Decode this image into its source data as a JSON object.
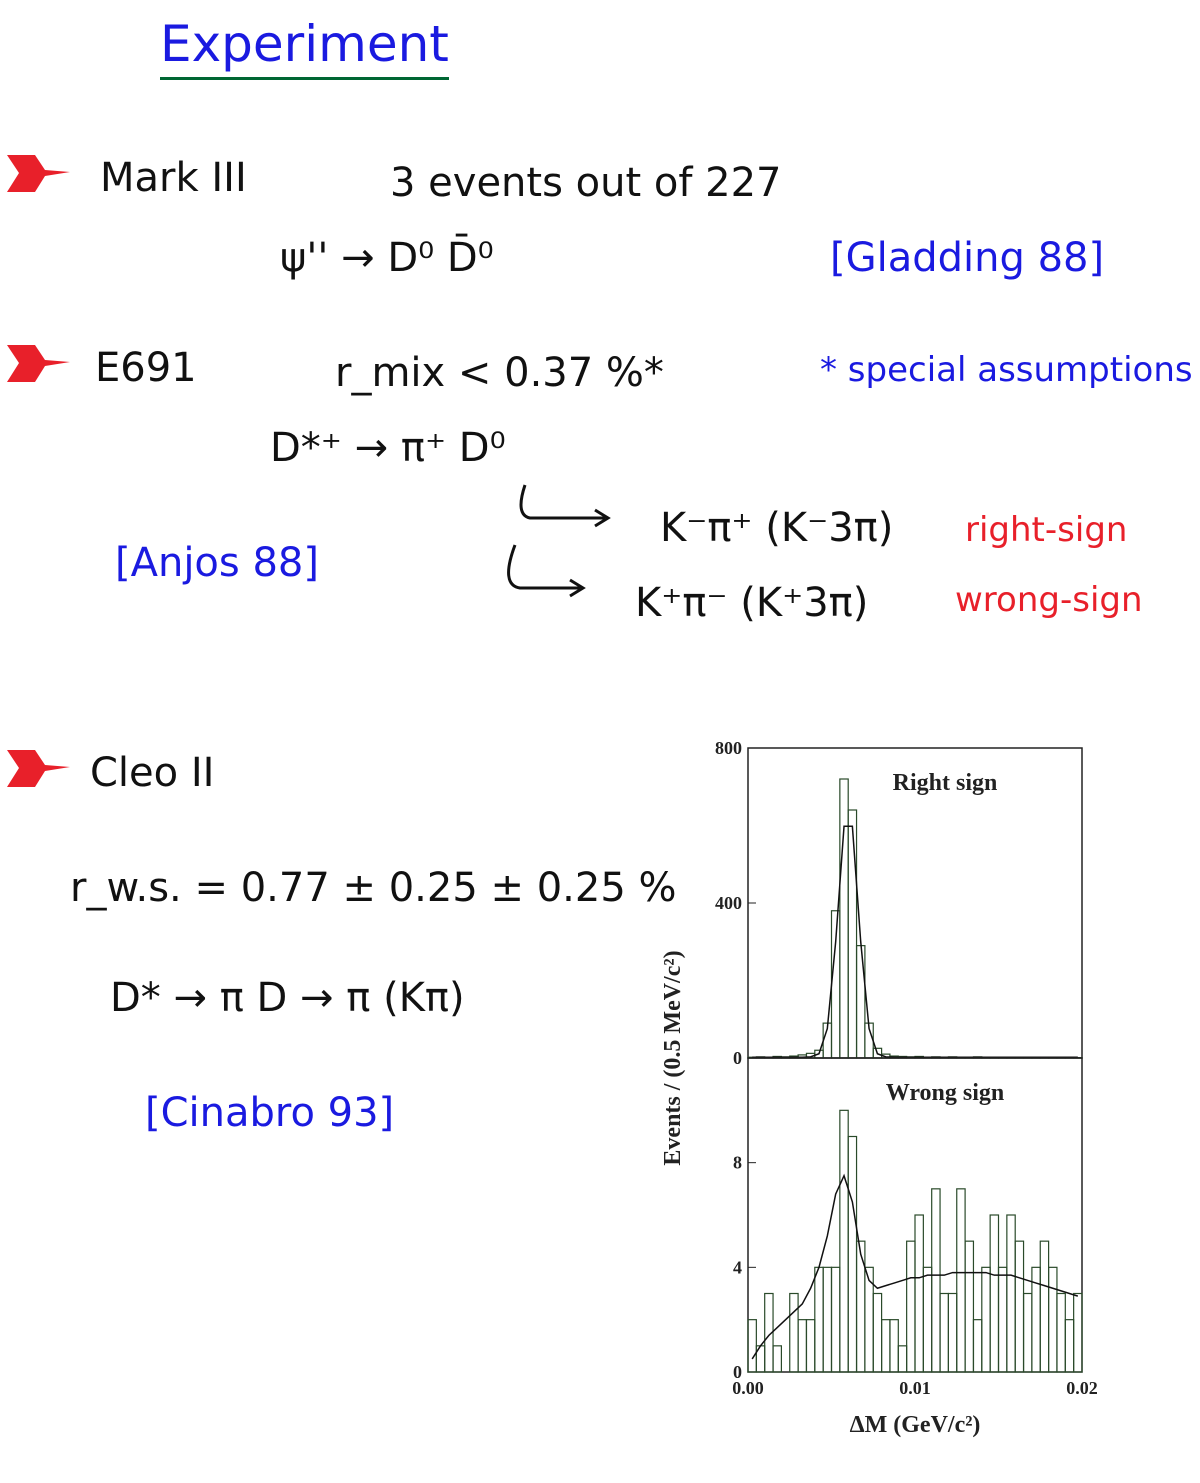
{
  "header": {
    "title": "Experiment"
  },
  "items": [
    {
      "name": "Mark III",
      "result": "3 events out of 227",
      "process": "ψ'' → D⁰ D̄⁰",
      "reference": "[Gladding 88]"
    },
    {
      "name": "E691",
      "result": "r_mix < 0.37 %*",
      "note": "* special assumptions",
      "process": "D*⁺ → π⁺ D⁰",
      "decays": [
        {
          "mode": "K⁻π⁺ (K⁻3π)",
          "label": "right-sign"
        },
        {
          "mode": "K⁺π⁻ (K⁺3π)",
          "label": "wrong-sign"
        }
      ],
      "reference": "[Anjos 88]"
    },
    {
      "name": "Cleo II",
      "result": "r_w.s. = 0.77 ± 0.25 ± 0.25 %",
      "process": "D* → π D → π (Kπ)",
      "reference": "[Cinabro 93]"
    }
  ],
  "chart_data": [
    {
      "type": "histogram",
      "title": "Right sign",
      "ylabel": "Events / (0.5 MeV/c²)",
      "bins": [
        0,
        0.0005,
        0.001,
        0.0015,
        0.002,
        0.0025,
        0.003,
        0.0035,
        0.004,
        0.0045,
        0.005,
        0.0055,
        0.006,
        0.0065,
        0.007,
        0.0075,
        0.008,
        0.0085,
        0.009,
        0.0095,
        0.01,
        0.0105,
        0.011,
        0.0115,
        0.012,
        0.0125,
        0.013,
        0.0135,
        0.014,
        0.0145,
        0.015,
        0.0155,
        0.016,
        0.0165,
        0.017,
        0.0175,
        0.018,
        0.0185,
        0.019,
        0.0195,
        0.02
      ],
      "values": [
        2,
        3,
        2,
        4,
        3,
        5,
        8,
        12,
        20,
        90,
        380,
        720,
        640,
        290,
        90,
        25,
        10,
        5,
        4,
        3,
        4,
        2,
        3,
        2,
        3,
        2,
        2,
        3,
        2,
        1,
        2,
        2,
        1,
        2,
        1,
        2,
        1,
        1,
        2,
        1
      ],
      "fit": [
        2,
        2,
        2,
        2,
        2,
        2,
        2,
        3,
        11,
        76,
        300,
        598,
        598,
        300,
        76,
        11,
        3,
        2,
        2,
        2,
        2,
        2,
        2,
        2,
        2,
        2,
        2,
        2,
        2,
        2,
        2,
        2,
        2,
        2,
        2,
        2,
        2,
        2,
        2,
        2
      ],
      "xlim": [
        0,
        0.02
      ],
      "ylim": [
        0,
        800
      ],
      "yticks": [
        0,
        400,
        800
      ]
    },
    {
      "type": "histogram",
      "title": "Wrong sign",
      "xlabel": "ΔM (GeV/c²)",
      "bins": [
        0,
        0.0005,
        0.001,
        0.0015,
        0.002,
        0.0025,
        0.003,
        0.0035,
        0.004,
        0.0045,
        0.005,
        0.0055,
        0.006,
        0.0065,
        0.007,
        0.0075,
        0.008,
        0.0085,
        0.009,
        0.0095,
        0.01,
        0.0105,
        0.011,
        0.0115,
        0.012,
        0.0125,
        0.013,
        0.0135,
        0.014,
        0.0145,
        0.015,
        0.0155,
        0.016,
        0.0165,
        0.017,
        0.0175,
        0.018,
        0.0185,
        0.019,
        0.0195,
        0.02
      ],
      "values": [
        2,
        1,
        3,
        1,
        0,
        3,
        2,
        2,
        4,
        4,
        4,
        10,
        9,
        5,
        4,
        3,
        2,
        2,
        1,
        5,
        6,
        4,
        7,
        3,
        3,
        7,
        5,
        2,
        4,
        6,
        4,
        6,
        5,
        3,
        4,
        5,
        4,
        3,
        2,
        3
      ],
      "fit": [
        0.5,
        1,
        1.4,
        1.7,
        2,
        2.3,
        2.6,
        3.2,
        4,
        5.2,
        6.8,
        7.5,
        6.5,
        4.5,
        3.5,
        3.2,
        3.3,
        3.4,
        3.5,
        3.6,
        3.6,
        3.7,
        3.7,
        3.7,
        3.8,
        3.8,
        3.8,
        3.8,
        3.8,
        3.7,
        3.7,
        3.7,
        3.6,
        3.5,
        3.4,
        3.3,
        3.2,
        3.1,
        3,
        2.9
      ],
      "xlim": [
        0,
        0.02
      ],
      "ylim": [
        0,
        12
      ],
      "yticks": [
        0,
        4,
        8
      ],
      "xticks": [
        {
          "value": 0,
          "label": "0.00"
        },
        {
          "value": 0.01,
          "label": "0.01"
        },
        {
          "value": 0.02,
          "label": "0.02"
        }
      ]
    }
  ]
}
